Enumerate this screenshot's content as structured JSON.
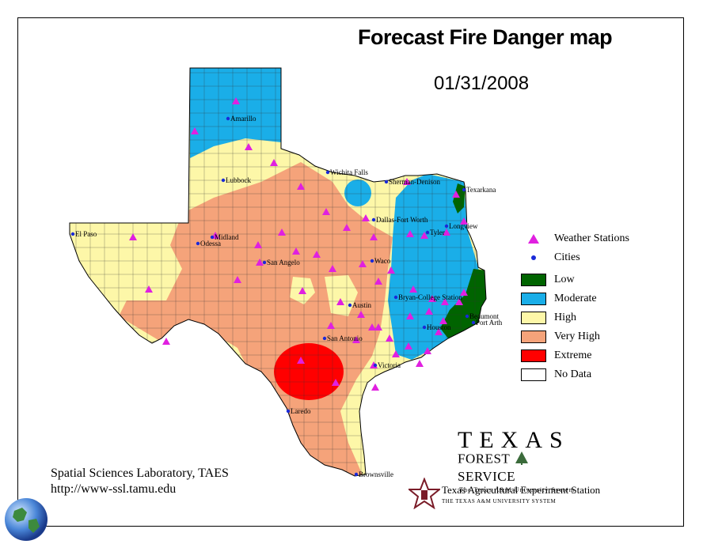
{
  "header": {
    "title": "Forecast Fire Danger map",
    "date": "01/31/2008"
  },
  "legend": {
    "weather_stations": "Weather Stations",
    "cities": "Cities",
    "classes": [
      {
        "label": "Low",
        "color": "#006400"
      },
      {
        "label": "Moderate",
        "color": "#1aaee8"
      },
      {
        "label": "High",
        "color": "#fdf7a8"
      },
      {
        "label": "Very High",
        "color": "#f5a37a"
      },
      {
        "label": "Extreme",
        "color": "#ff0000"
      },
      {
        "label": "No Data",
        "color": "#ffffff"
      }
    ]
  },
  "cities": [
    {
      "name": "Amarillo"
    },
    {
      "name": "Lubbock"
    },
    {
      "name": "Wichita Falls"
    },
    {
      "name": "Sherman-Denison"
    },
    {
      "name": "Texarkana"
    },
    {
      "name": "Dallas-Fort Worth"
    },
    {
      "name": "Longview"
    },
    {
      "name": "Tyler"
    },
    {
      "name": "El Paso"
    },
    {
      "name": "Midland"
    },
    {
      "name": "Odessa"
    },
    {
      "name": "San Angelo"
    },
    {
      "name": "Waco"
    },
    {
      "name": "Bryan-College Station"
    },
    {
      "name": "Austin"
    },
    {
      "name": "Houston"
    },
    {
      "name": "Beaumont"
    },
    {
      "name": "Port Arth"
    },
    {
      "name": "San Antonio"
    },
    {
      "name": "Victoria"
    },
    {
      "name": "Laredo"
    },
    {
      "name": "Brownsville"
    }
  ],
  "credits": {
    "lab": "Spatial Sciences Laboratory, TAES",
    "url": "http://www-ssl.tamu.edu"
  },
  "logos": {
    "tfs_texas": "TEXAS",
    "tfs_forest": "FOREST",
    "tfs_service": "SERVICE",
    "tfs_sub": "The Texas A&M University System",
    "taes_name": "Texas Agricultural Experiment Station",
    "taes_sub": "THE TEXAS A&M UNIVERSITY SYSTEM"
  }
}
